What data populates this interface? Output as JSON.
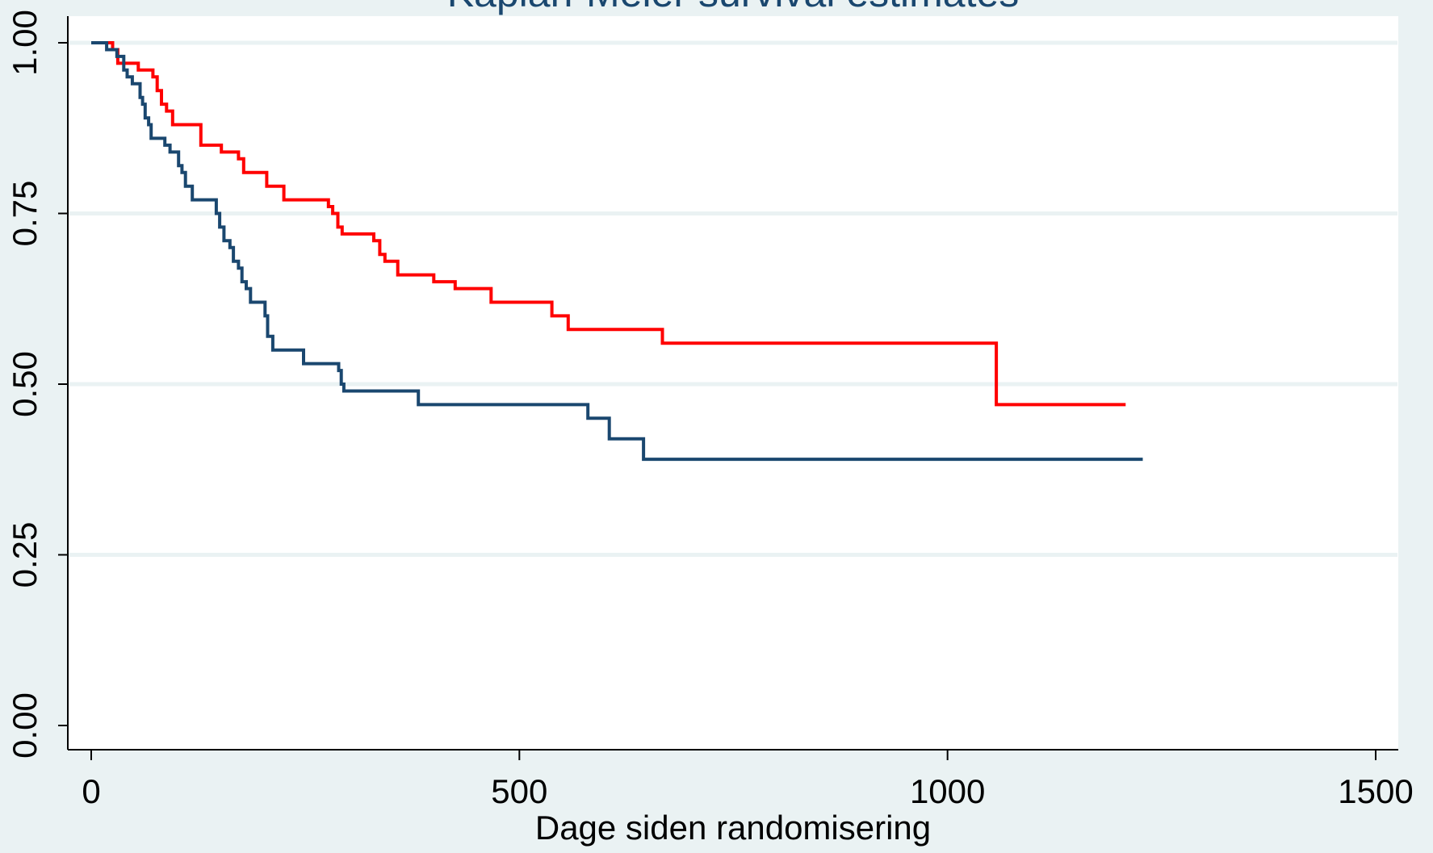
{
  "chart_data": {
    "type": "line",
    "step": true,
    "title": "Kaplan-Meier survival estimates",
    "xlabel": "Dage siden randomisering",
    "ylabel": "",
    "xlim": [
      0,
      1500
    ],
    "ylim": [
      0,
      1
    ],
    "x_ticks": [
      {
        "value": 0,
        "label": "0"
      },
      {
        "value": 500,
        "label": "500"
      },
      {
        "value": 1000,
        "label": "1000"
      },
      {
        "value": 1500,
        "label": "1500"
      }
    ],
    "y_ticks": [
      {
        "value": 0,
        "label": "0.00"
      },
      {
        "value": 0.25,
        "label": "0.25"
      },
      {
        "value": 0.5,
        "label": "0.50"
      },
      {
        "value": 0.75,
        "label": "0.75"
      },
      {
        "value": 1,
        "label": "1.00"
      }
    ],
    "grid": "horizontal",
    "colors": {
      "background": "#eaf2f3",
      "plot_area": "#ffffff",
      "grid": "#eaf2f3",
      "title": "#1a476f"
    },
    "series": [
      {
        "color": "#ff0000",
        "points": [
          [
            0,
            1.0
          ],
          [
            25,
            0.99
          ],
          [
            31,
            0.97
          ],
          [
            55,
            0.96
          ],
          [
            72,
            0.95
          ],
          [
            77,
            0.93
          ],
          [
            82,
            0.91
          ],
          [
            88,
            0.9
          ],
          [
            95,
            0.88
          ],
          [
            128,
            0.85
          ],
          [
            152,
            0.84
          ],
          [
            172,
            0.83
          ],
          [
            178,
            0.81
          ],
          [
            205,
            0.79
          ],
          [
            225,
            0.77
          ],
          [
            277,
            0.76
          ],
          [
            282,
            0.75
          ],
          [
            288,
            0.73
          ],
          [
            293,
            0.72
          ],
          [
            330,
            0.71
          ],
          [
            337,
            0.69
          ],
          [
            343,
            0.68
          ],
          [
            358,
            0.66
          ],
          [
            400,
            0.65
          ],
          [
            425,
            0.64
          ],
          [
            467,
            0.62
          ],
          [
            538,
            0.6
          ],
          [
            557,
            0.58
          ],
          [
            667,
            0.56
          ],
          [
            1057,
            0.47
          ],
          [
            1208,
            0.47
          ]
        ]
      },
      {
        "color": "#1a476f",
        "points": [
          [
            0,
            1.0
          ],
          [
            18,
            0.99
          ],
          [
            30,
            0.98
          ],
          [
            38,
            0.96
          ],
          [
            42,
            0.95
          ],
          [
            48,
            0.94
          ],
          [
            57,
            0.92
          ],
          [
            60,
            0.91
          ],
          [
            63,
            0.89
          ],
          [
            67,
            0.88
          ],
          [
            70,
            0.86
          ],
          [
            86,
            0.85
          ],
          [
            92,
            0.84
          ],
          [
            102,
            0.82
          ],
          [
            106,
            0.81
          ],
          [
            110,
            0.79
          ],
          [
            118,
            0.77
          ],
          [
            146,
            0.75
          ],
          [
            150,
            0.73
          ],
          [
            155,
            0.71
          ],
          [
            162,
            0.7
          ],
          [
            166,
            0.68
          ],
          [
            172,
            0.67
          ],
          [
            176,
            0.65
          ],
          [
            181,
            0.64
          ],
          [
            186,
            0.62
          ],
          [
            203,
            0.6
          ],
          [
            206,
            0.57
          ],
          [
            212,
            0.55
          ],
          [
            248,
            0.53
          ],
          [
            289,
            0.52
          ],
          [
            292,
            0.5
          ],
          [
            295,
            0.49
          ],
          [
            382,
            0.47
          ],
          [
            580,
            0.45
          ],
          [
            605,
            0.42
          ],
          [
            645,
            0.39
          ],
          [
            1228,
            0.39
          ]
        ]
      }
    ]
  }
}
